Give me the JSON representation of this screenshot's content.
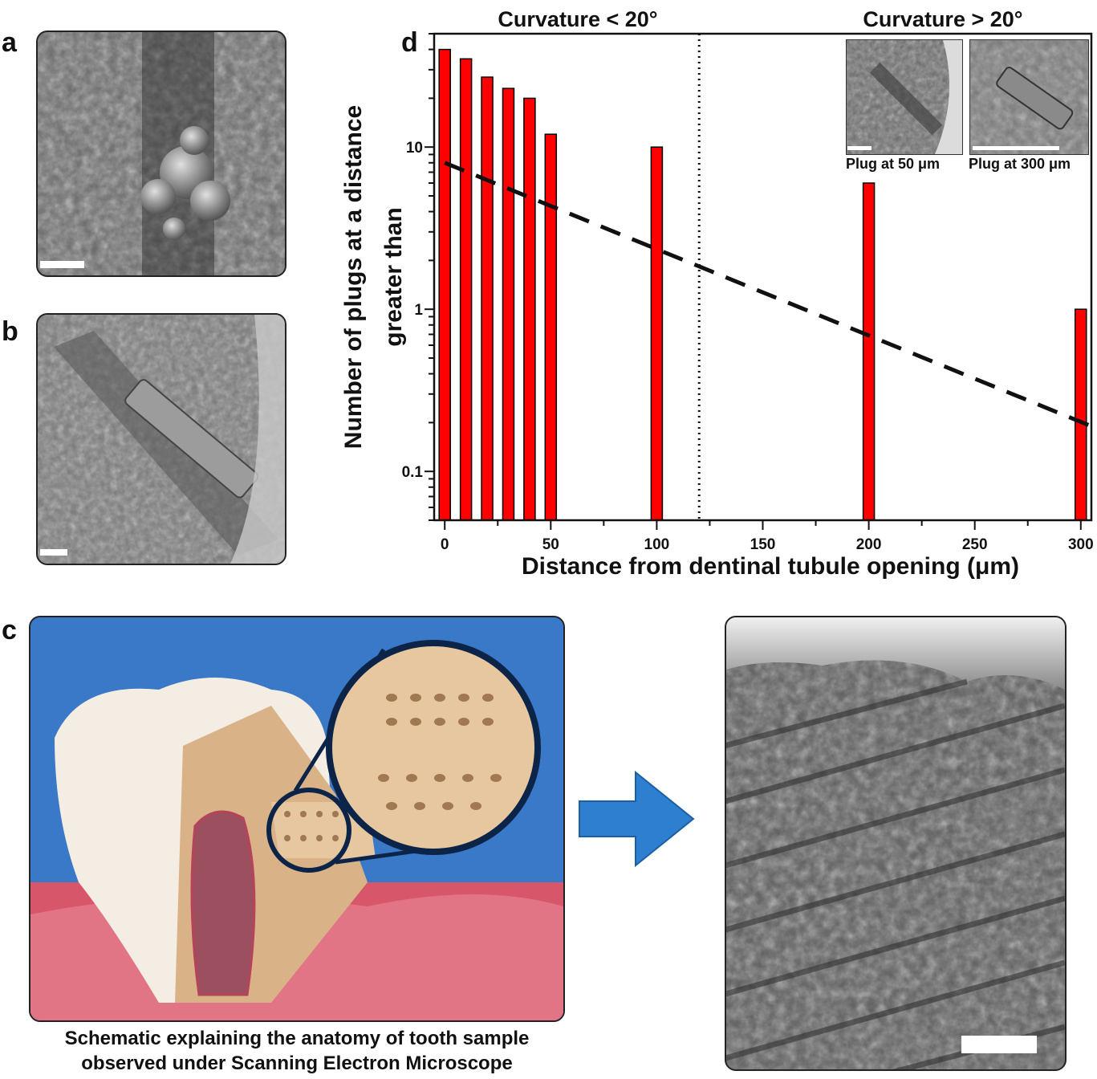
{
  "panels": {
    "a": {
      "letter": "a"
    },
    "b": {
      "letter": "b"
    },
    "c": {
      "letter": "c",
      "caption_line1": "Schematic explaining the anatomy of tooth sample",
      "caption_line2": "observed under Scanning Electron Microscope"
    },
    "d": {
      "letter": "d"
    }
  },
  "colors": {
    "bar_fill": "#ff0000",
    "bar_stroke": "#000000",
    "arrow": "#2f7fd0",
    "background_blue": "#3a78c8",
    "gum_pink": "#d8566a",
    "ring": "#0c2448"
  },
  "chart_data": {
    "type": "bar",
    "title": "",
    "region_labels": [
      "Curvature < 20°",
      "Curvature > 20°"
    ],
    "xlabel": "Distance from dentinal tubule opening (μm)",
    "ylabel_line1": "Number of plugs at a distance",
    "ylabel_line2": "greater than",
    "yscale": "log",
    "xlim": [
      -5,
      305
    ],
    "ylim": [
      0.05,
      50
    ],
    "x_ticks": [
      "0",
      "50",
      "100",
      "150",
      "200",
      "250",
      "300"
    ],
    "y_ticks": [
      "0.1",
      "1",
      "10"
    ],
    "x": [
      0,
      10,
      20,
      30,
      40,
      50,
      100,
      200,
      300
    ],
    "values": [
      40,
      35,
      27,
      23,
      20,
      12,
      10,
      6,
      1
    ],
    "divider_x": 120,
    "fit_line": {
      "style": "dashed",
      "x": [
        0,
        305
      ],
      "y": [
        8,
        0.19
      ]
    },
    "insets": [
      "Plug at 50 μm",
      "Plug at 300 μm"
    ]
  }
}
